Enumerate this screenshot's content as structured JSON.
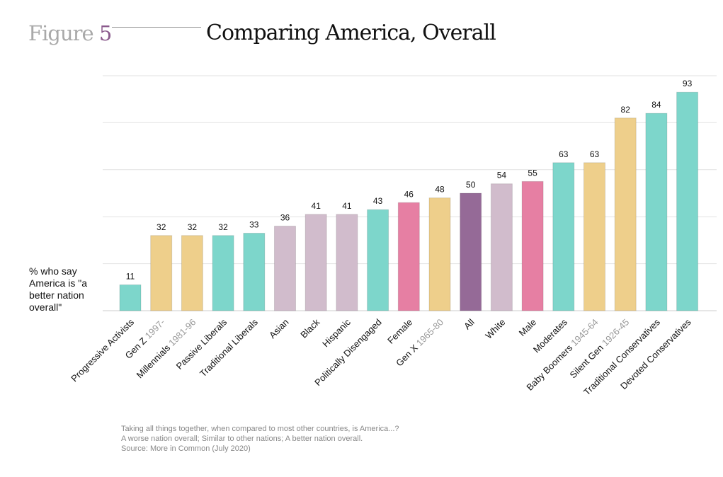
{
  "header": {
    "figure_label": "Figure",
    "figure_number": "5",
    "title": "Comparing America, Overall"
  },
  "chart_data": {
    "type": "bar",
    "title": "Comparing America, Overall",
    "ylabel": "% who say America is \"a better nation overall\"",
    "xlabel": "",
    "ylim": [
      0,
      100
    ],
    "grid": true,
    "categories": [
      {
        "label": "Progressive Activists",
        "years": "",
        "value": 11,
        "color": "#7dd6cb"
      },
      {
        "label": "Gen Z",
        "years": "1997-",
        "value": 32,
        "color": "#eecf8b"
      },
      {
        "label": "Millennials",
        "years": "1981-96",
        "value": 32,
        "color": "#eecf8b"
      },
      {
        "label": "Passive Liberals",
        "years": "",
        "value": 32,
        "color": "#7dd6cb"
      },
      {
        "label": "Traditional Liberals",
        "years": "",
        "value": 33,
        "color": "#7dd6cb"
      },
      {
        "label": "Asian",
        "years": "",
        "value": 36,
        "color": "#d1bccc"
      },
      {
        "label": "Black",
        "years": "",
        "value": 41,
        "color": "#d1bccc"
      },
      {
        "label": "Hispanic",
        "years": "",
        "value": 41,
        "color": "#d1bccc"
      },
      {
        "label": "Politically Disengaged",
        "years": "",
        "value": 43,
        "color": "#7dd6cb"
      },
      {
        "label": "Female",
        "years": "",
        "value": 46,
        "color": "#e67fa3"
      },
      {
        "label": "Gen X",
        "years": "1965-80",
        "value": 48,
        "color": "#eecf8b"
      },
      {
        "label": "All",
        "years": "",
        "value": 50,
        "color": "#956a97"
      },
      {
        "label": "White",
        "years": "",
        "value": 54,
        "color": "#d1bccc"
      },
      {
        "label": "Male",
        "years": "",
        "value": 55,
        "color": "#e67fa3"
      },
      {
        "label": "Moderates",
        "years": "",
        "value": 63,
        "color": "#7dd6cb"
      },
      {
        "label": "Baby Boomers",
        "years": "1945-64",
        "value": 63,
        "color": "#eecf8b"
      },
      {
        "label": "Silent Gen",
        "years": "1926-45",
        "value": 82,
        "color": "#eecf8b"
      },
      {
        "label": "Traditional Conservatives",
        "years": "",
        "value": 84,
        "color": "#7dd6cb"
      },
      {
        "label": "Devoted Conservatives",
        "years": "",
        "value": 93,
        "color": "#7dd6cb"
      }
    ]
  },
  "footer": {
    "question": "Taking all things together, when compared to most other countries, is America...?",
    "options": "A worse nation overall; Similar to other nations; A better nation overall.",
    "source": "Source: More in Common (July 2020)"
  }
}
